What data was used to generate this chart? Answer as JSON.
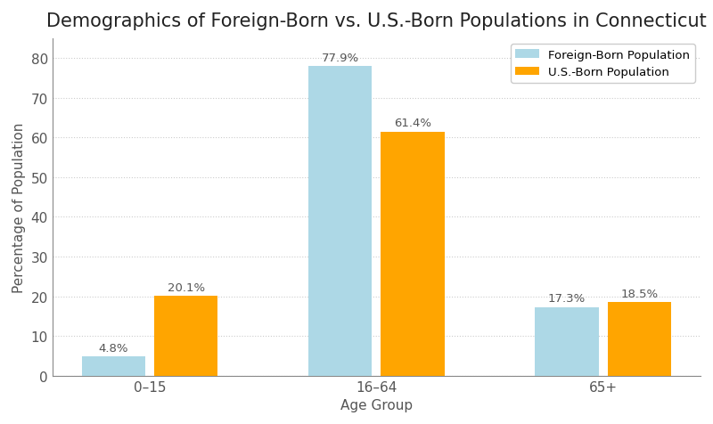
{
  "title": "Demographics of Foreign-Born vs. U.S.-Born Populations in Connecticut",
  "xlabel": "Age Group",
  "ylabel": "Percentage of Population",
  "categories": [
    "0–15",
    "16–64",
    "65+"
  ],
  "foreign_born": [
    4.8,
    77.9,
    17.3
  ],
  "us_born": [
    20.1,
    61.4,
    18.5
  ],
  "foreign_born_color": "#add8e6",
  "us_born_color": "#FFA500",
  "background_color": "#ffffff",
  "ylim": [
    0,
    85
  ],
  "yticks": [
    0,
    10,
    20,
    30,
    40,
    50,
    60,
    70,
    80
  ],
  "bar_width": 0.28,
  "legend_labels": [
    "Foreign-Born Population",
    "U.S.-Born Population"
  ],
  "title_fontsize": 15,
  "axis_label_fontsize": 11,
  "tick_fontsize": 11,
  "annotation_fontsize": 9.5
}
